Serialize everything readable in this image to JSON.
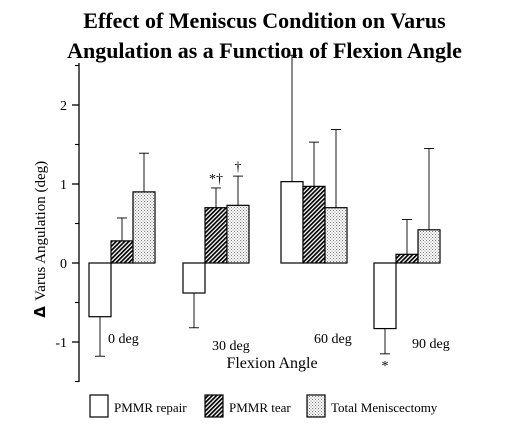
{
  "chart_data": {
    "type": "bar",
    "title_lines": [
      "Effect of Meniscus Condition on Varus",
      "Angulation as a Function of Flexion Angle"
    ],
    "xlabel": "Flexion Angle",
    "ylabel_symbol": "Δ",
    "ylabel": "Varus Angulation (deg)",
    "ylim": [
      -1.5,
      2.5
    ],
    "yticks": [
      "-1",
      "0",
      "1",
      "2"
    ],
    "categories": [
      "0 deg",
      "30 deg",
      "60 deg",
      "90 deg"
    ],
    "series": [
      {
        "name": "PMMR repair",
        "fill": "white",
        "values": [
          -0.68,
          -0.38,
          1.03,
          -0.83
        ],
        "errors": [
          0.5,
          0.44,
          1.6,
          0.32
        ]
      },
      {
        "name": "PMMR tear",
        "fill": "hatch",
        "values": [
          0.28,
          0.7,
          0.97,
          0.11
        ],
        "errors": [
          0.29,
          0.25,
          0.56,
          0.44
        ]
      },
      {
        "name": "Total Meniscectomy",
        "fill": "dots",
        "values": [
          0.9,
          0.73,
          0.7,
          0.42
        ],
        "errors": [
          0.49,
          0.37,
          0.99,
          1.03
        ]
      }
    ],
    "annotations": [
      {
        "category": "30 deg",
        "series": "PMMR tear",
        "text": "*†"
      },
      {
        "category": "30 deg",
        "series": "Total Meniscectomy",
        "text": "†"
      },
      {
        "category": "90 deg",
        "series": "PMMR repair",
        "text": "*"
      }
    ],
    "legend_position": "bottom",
    "grid": false
  }
}
